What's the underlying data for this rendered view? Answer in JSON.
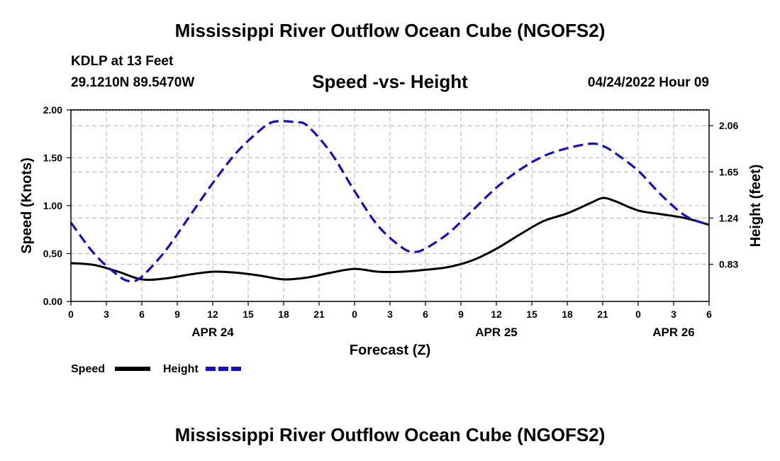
{
  "header": {
    "title": "Mississippi River Outflow Ocean Cube (NGOFS2)",
    "station": "KDLP at 13 Feet",
    "coordinates": "29.1210N  89.5470W",
    "chart_title": "Speed -vs- Height",
    "datetime": "04/24/2022 Hour 09"
  },
  "footer": {
    "title": "Mississippi River Outflow Ocean Cube (NGOFS2)"
  },
  "colors": {
    "speed": "#000000",
    "height": "#1010c8",
    "grid": "#b4b4b4"
  },
  "chart_data": {
    "type": "line",
    "title": "Speed -vs- Height",
    "xlabel": "Forecast (Z)",
    "ylabel": "Speed (Knots)",
    "y2label": "Height (feet)",
    "x_range_hours": [
      0,
      54
    ],
    "x_ticks": [
      {
        "hour": 0,
        "label": "0"
      },
      {
        "hour": 3,
        "label": "3"
      },
      {
        "hour": 6,
        "label": "6"
      },
      {
        "hour": 9,
        "label": "9"
      },
      {
        "hour": 12,
        "label": "12"
      },
      {
        "hour": 15,
        "label": "15"
      },
      {
        "hour": 18,
        "label": "18"
      },
      {
        "hour": 21,
        "label": "21"
      },
      {
        "hour": 24,
        "label": "0"
      },
      {
        "hour": 27,
        "label": "3"
      },
      {
        "hour": 30,
        "label": "6"
      },
      {
        "hour": 33,
        "label": "9"
      },
      {
        "hour": 36,
        "label": "12"
      },
      {
        "hour": 39,
        "label": "15"
      },
      {
        "hour": 42,
        "label": "18"
      },
      {
        "hour": 45,
        "label": "21"
      },
      {
        "hour": 48,
        "label": "0"
      },
      {
        "hour": 51,
        "label": "3"
      },
      {
        "hour": 54,
        "label": "6"
      }
    ],
    "date_labels": [
      {
        "hour": 12,
        "label": "APR 24"
      },
      {
        "hour": 36,
        "label": "APR 25"
      },
      {
        "hour": 51,
        "label": "APR 26"
      }
    ],
    "ylim": [
      0,
      2.0
    ],
    "y_ticks": [
      {
        "value": 0.0,
        "label": "0.00"
      },
      {
        "value": 0.5,
        "label": "0.50"
      },
      {
        "value": 1.0,
        "label": "1.00"
      },
      {
        "value": 1.5,
        "label": "1.50"
      },
      {
        "value": 2.0,
        "label": "2.00"
      }
    ],
    "y2lim": [
      0.5,
      2.2
    ],
    "y2_ticks": [
      {
        "value": 0.83,
        "label": "0.83"
      },
      {
        "value": 1.24,
        "label": "1.24"
      },
      {
        "value": 1.65,
        "label": "1.65"
      },
      {
        "value": 2.06,
        "label": "2.06"
      }
    ],
    "grid": true,
    "legend_position": "bottom-left",
    "series": [
      {
        "name": "Speed",
        "axis": "left",
        "style": "solid",
        "x": [
          0,
          2,
          4,
          6,
          8,
          10,
          12,
          14,
          16,
          18,
          20,
          22,
          24,
          26,
          28,
          30,
          32,
          34,
          36,
          38,
          40,
          42,
          44,
          45,
          46,
          48,
          50,
          52,
          54
        ],
        "values": [
          0.4,
          0.38,
          0.31,
          0.23,
          0.24,
          0.28,
          0.31,
          0.3,
          0.27,
          0.23,
          0.25,
          0.3,
          0.34,
          0.31,
          0.31,
          0.33,
          0.36,
          0.43,
          0.55,
          0.7,
          0.84,
          0.92,
          1.03,
          1.08,
          1.05,
          0.95,
          0.91,
          0.87,
          0.8
        ]
      },
      {
        "name": "Height",
        "axis": "right",
        "style": "dashed",
        "x": [
          0,
          2,
          4,
          5,
          6,
          8,
          10,
          12,
          14,
          16,
          17,
          18,
          19,
          20,
          22,
          24,
          26,
          28,
          29,
          30,
          32,
          34,
          36,
          38,
          40,
          42,
          44,
          45,
          46,
          48,
          50,
          52,
          54
        ],
        "values": [
          1.2,
          0.92,
          0.73,
          0.68,
          0.72,
          0.95,
          1.25,
          1.55,
          1.82,
          2.02,
          2.09,
          2.1,
          2.09,
          2.06,
          1.82,
          1.48,
          1.17,
          0.98,
          0.94,
          0.97,
          1.11,
          1.31,
          1.51,
          1.67,
          1.79,
          1.86,
          1.9,
          1.88,
          1.82,
          1.66,
          1.44,
          1.26,
          1.18
        ]
      }
    ]
  }
}
